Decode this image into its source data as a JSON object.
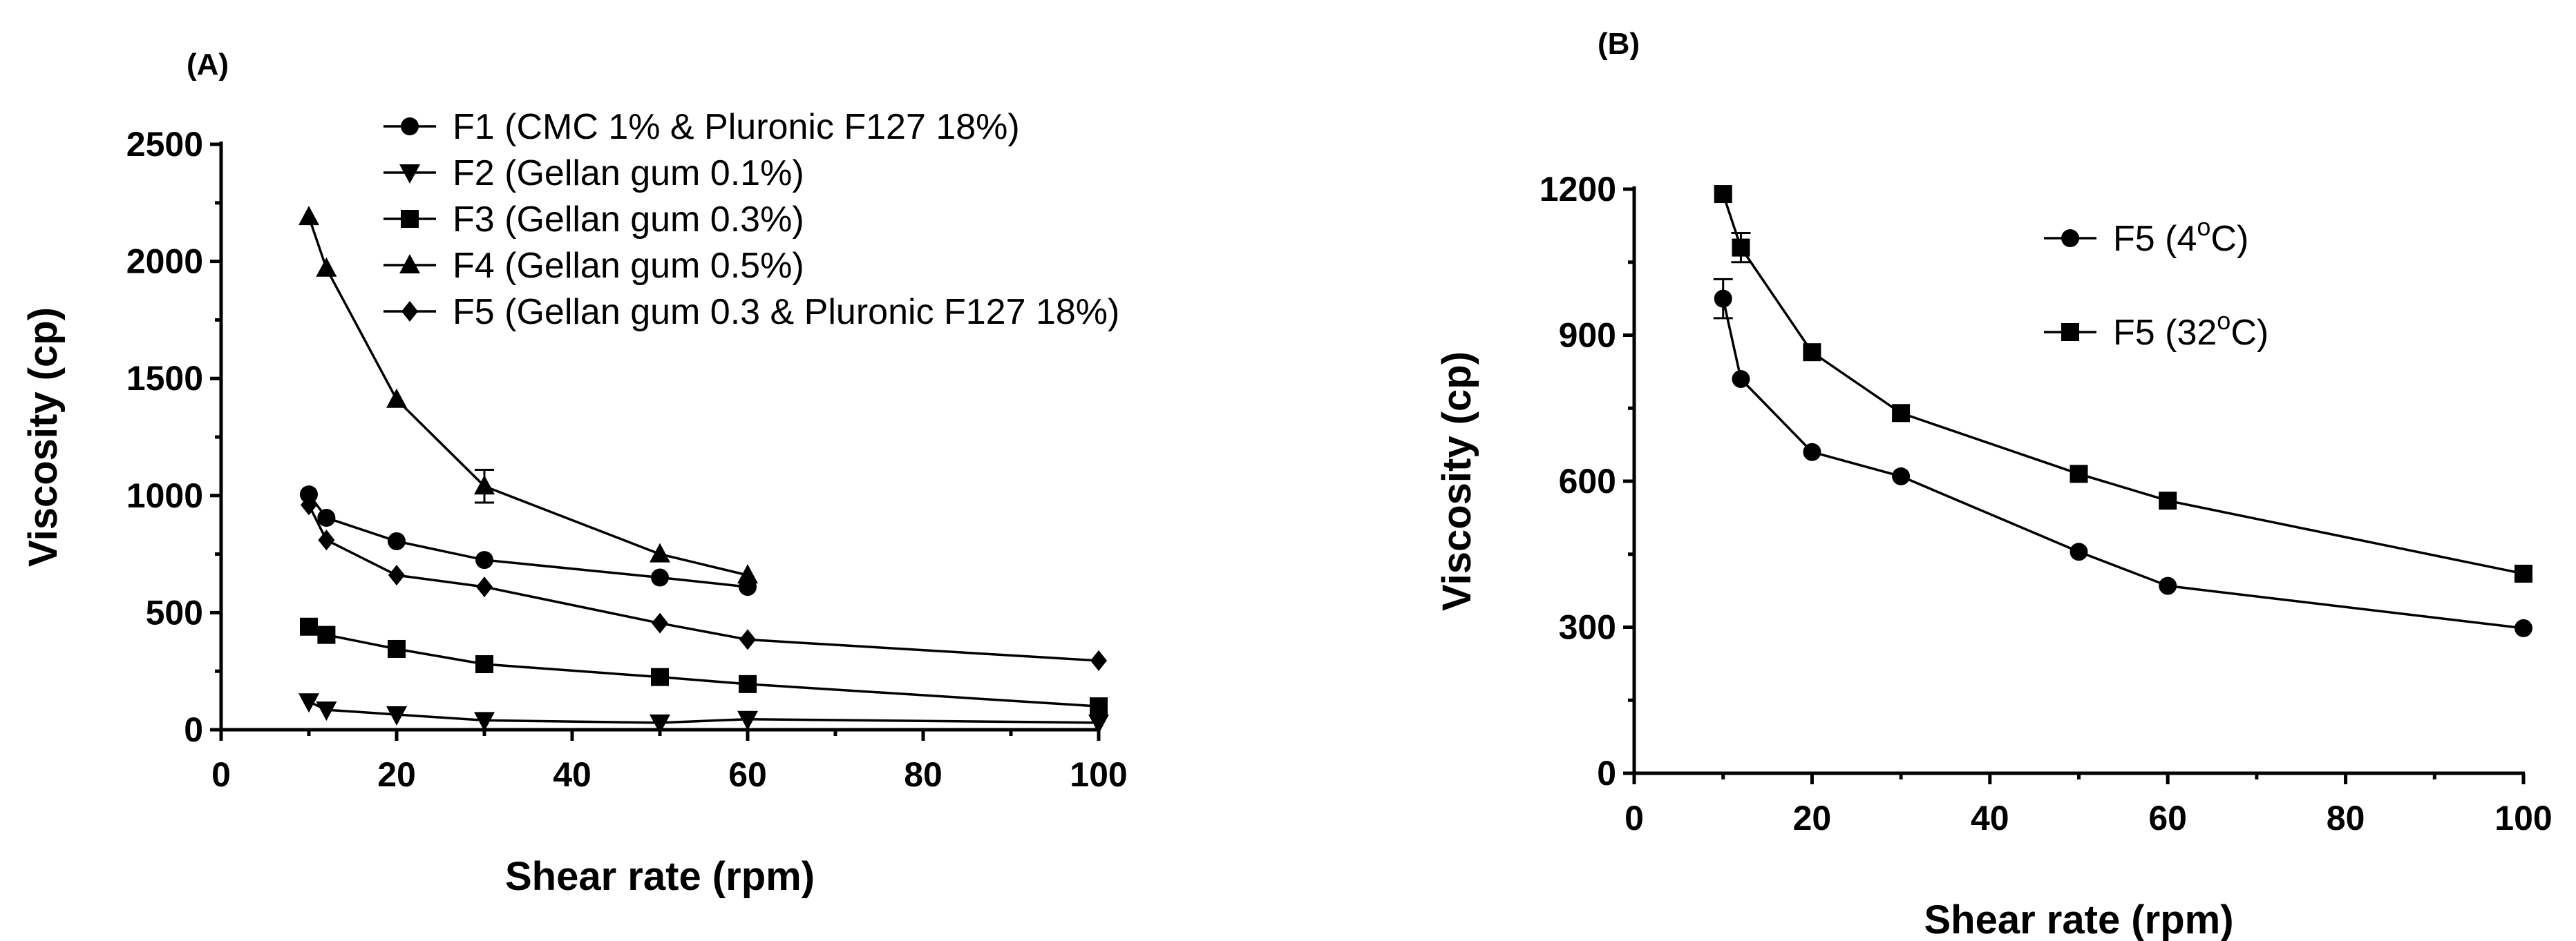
{
  "chart_data": [
    {
      "panel_label": "(A)",
      "type": "line",
      "xlabel": "Shear rate (rpm)",
      "ylabel": "Viscosity (cp)",
      "xlim": [
        0,
        100
      ],
      "ylim": [
        0,
        2500
      ],
      "xticks": [
        "0",
        "20",
        "40",
        "60",
        "80",
        "100"
      ],
      "yticks": [
        "0",
        "500",
        "1000",
        "1500",
        "2000",
        "2500"
      ],
      "grid": false,
      "legend_position": "top-right",
      "series": [
        {
          "name": "F1 (CMC 1% & Pluronic F127 18%)",
          "marker": "circle",
          "x": [
            10,
            12,
            20,
            30,
            50,
            60
          ],
          "y": [
            1005,
            905,
            805,
            725,
            650,
            610
          ]
        },
        {
          "name": "F2 (Gellan gum 0.1%)",
          "marker": "triangle-down",
          "x": [
            10,
            12,
            20,
            30,
            50,
            60,
            100
          ],
          "y": [
            120,
            85,
            65,
            40,
            30,
            45,
            30
          ]
        },
        {
          "name": "F3 (Gellan gum 0.3%)",
          "marker": "square",
          "x": [
            10,
            12,
            20,
            30,
            50,
            60,
            100
          ],
          "y": [
            440,
            405,
            345,
            280,
            225,
            195,
            100
          ]
        },
        {
          "name": "F4 (Gellan gum 0.5%)",
          "marker": "triangle-up",
          "x": [
            10,
            12,
            20,
            30,
            50,
            60
          ],
          "y": [
            2190,
            1970,
            1410,
            1040,
            750,
            660
          ],
          "err": [
            0,
            0,
            0,
            70,
            0,
            0
          ]
        },
        {
          "name": "F5 (Gellan gum 0.3 & Pluronic F127 18%)",
          "marker": "diamond",
          "x": [
            10,
            12,
            20,
            30,
            50,
            60,
            100
          ],
          "y": [
            960,
            810,
            660,
            610,
            455,
            385,
            295
          ]
        }
      ]
    },
    {
      "panel_label": "(B)",
      "type": "line",
      "xlabel": "Shear rate (rpm)",
      "ylabel": "Viscosity (cp)",
      "xlim": [
        0,
        100
      ],
      "ylim": [
        0,
        1200
      ],
      "xticks": [
        "0",
        "20",
        "40",
        "60",
        "80",
        "100"
      ],
      "yticks": [
        "0",
        "300",
        "600",
        "900",
        "1200"
      ],
      "grid": false,
      "legend_position": "top-right",
      "series": [
        {
          "name": "F5 (4",
          "name_sup": "o",
          "name_tail": "C)",
          "marker": "circle",
          "x": [
            10,
            12,
            20,
            30,
            50,
            60,
            100
          ],
          "y": [
            975,
            810,
            660,
            610,
            455,
            385,
            298
          ],
          "err": [
            40,
            0,
            0,
            0,
            0,
            0,
            0
          ]
        },
        {
          "name": "F5 (32",
          "name_sup": "o",
          "name_tail": "C)",
          "marker": "square",
          "x": [
            10,
            12,
            20,
            30,
            50,
            60,
            100
          ],
          "y": [
            1190,
            1080,
            865,
            740,
            615,
            560,
            410
          ],
          "err": [
            0,
            30,
            0,
            0,
            0,
            0,
            0
          ]
        }
      ]
    }
  ]
}
